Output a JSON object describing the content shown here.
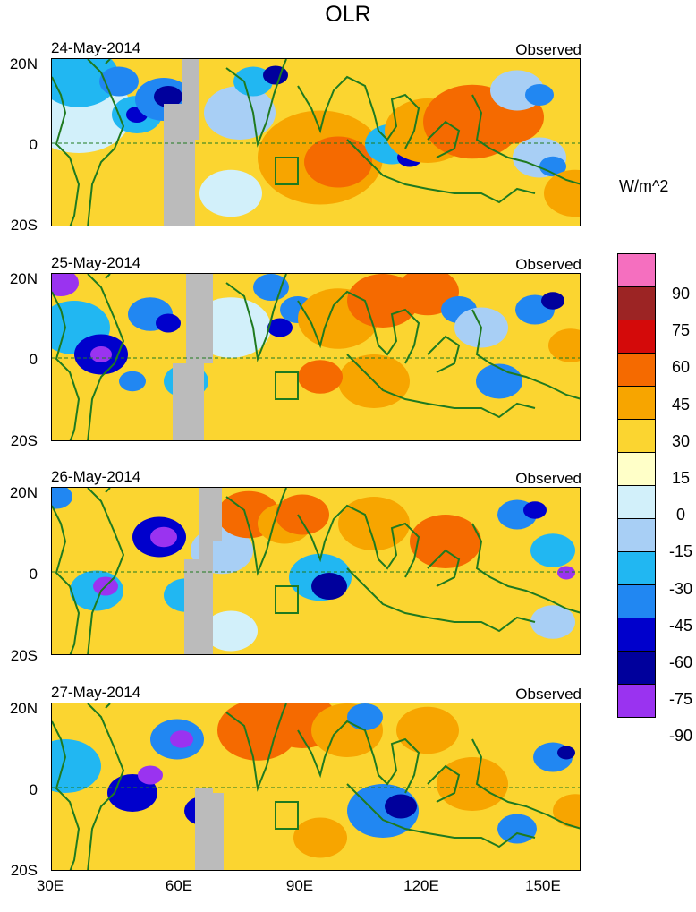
{
  "title": "OLR",
  "units": "W/m^2",
  "panels": [
    {
      "date": "24-May-2014",
      "kind": "Observed"
    },
    {
      "date": "25-May-2014",
      "kind": "Observed"
    },
    {
      "date": "26-May-2014",
      "kind": "Observed"
    },
    {
      "date": "27-May-2014",
      "kind": "Observed"
    }
  ],
  "lat_labels": {
    "north": "20N",
    "equator": "0",
    "south": "20S"
  },
  "lon_labels": [
    "30E",
    "60E",
    "90E",
    "120E",
    "150E"
  ],
  "colorbar": {
    "labels": [
      "90",
      "75",
      "60",
      "45",
      "30",
      "15",
      "0",
      "-15",
      "-30",
      "-45",
      "-60",
      "-75",
      "-90"
    ],
    "colors": [
      "#f56fbf",
      "#9c2424",
      "#d40a0a",
      "#f56a00",
      "#f7a500",
      "#fbd530",
      "#ffffc8",
      "#d2f0fa",
      "#a8cff5",
      "#21b7f2",
      "#2187f2",
      "#0000cc",
      "#00009c",
      "#9a33f0"
    ]
  },
  "colors": {
    "land": "#1f7a1f",
    "missing": "#bbbbbb",
    "equator": "#1f7a1f"
  }
}
